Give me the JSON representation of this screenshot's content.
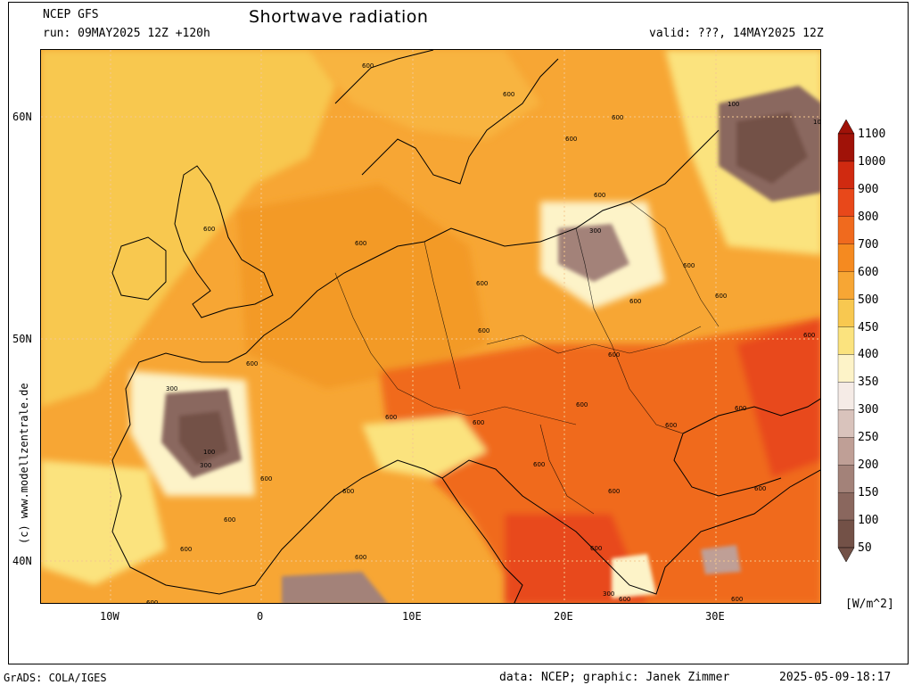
{
  "header": {
    "model": "NCEP GFS",
    "run": "run: 09MAY2025 12Z +120h",
    "title": "Shortwave radiation",
    "valid": "valid: ???, 14MAY2025 12Z"
  },
  "axes": {
    "lat_ticks": [
      "60N",
      "50N",
      "40N"
    ],
    "lon_ticks": [
      "10W",
      "0",
      "10E",
      "20E",
      "30E"
    ]
  },
  "colorbar": {
    "unit": "[W/m^2]",
    "levels": [
      "1100",
      "1000",
      "900",
      "800",
      "700",
      "600",
      "500",
      "450",
      "400",
      "350",
      "300",
      "250",
      "200",
      "150",
      "100",
      "50"
    ],
    "colors": [
      "#a01208",
      "#d02a10",
      "#e8481a",
      "#f06a1e",
      "#f58a20",
      "#f7a634",
      "#f8c850",
      "#fbe37e",
      "#fdf3c8",
      "#f5ebe6",
      "#d9c3bc",
      "#bf9f96",
      "#a38279",
      "#8a675e",
      "#735147"
    ]
  },
  "contour_labels": [
    "600",
    "100",
    "10",
    "300",
    "600",
    "600",
    "600",
    "600",
    "600",
    "600",
    "600",
    "300",
    "100",
    "300",
    "600",
    "600",
    "600",
    "600",
    "600",
    "600",
    "600",
    "300",
    "600"
  ],
  "footer": {
    "left": "GrADS: COLA/IGES",
    "center": "data: NCEP; graphic: Janek Zimmer",
    "right": "2025-05-09-18:17",
    "side": "(c) www.modellzentrale.de"
  }
}
